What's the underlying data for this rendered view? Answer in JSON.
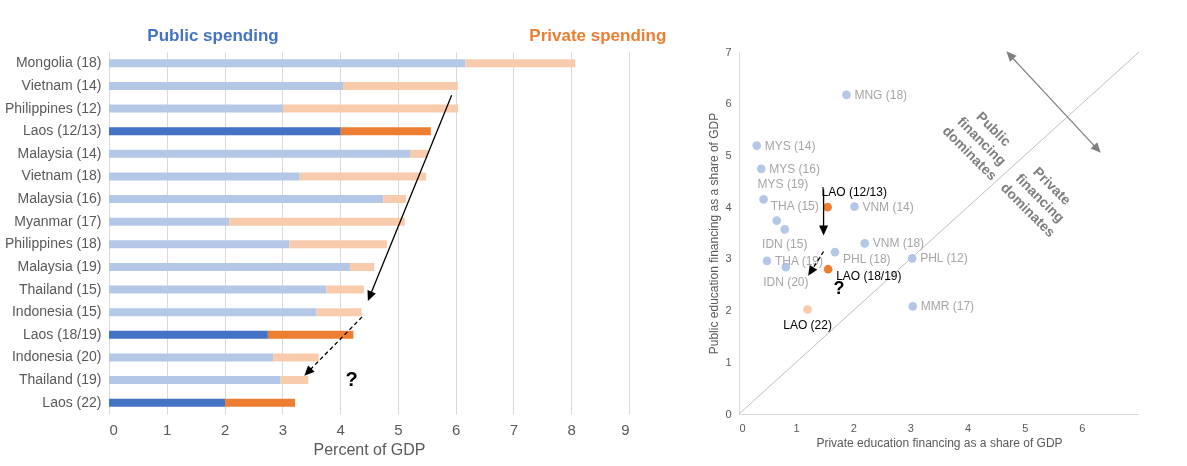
{
  "chart_data": [
    {
      "type": "bar",
      "orientation": "horizontal",
      "stacked": true,
      "legend": "top",
      "grid": "x",
      "xlabel": "Percent of GDP",
      "xlim": [
        0,
        9
      ],
      "xticks": [
        0,
        1,
        2,
        3,
        4,
        5,
        6,
        7,
        8,
        9
      ],
      "categories": [
        "Mongolia (18)",
        "Vietnam (14)",
        "Philippines (12)",
        "Laos (12/13)",
        "Malaysia (14)",
        "Vietnam (18)",
        "Malaysia (16)",
        "Myanmar (17)",
        "Philippines (18)",
        "Malaysia (19)",
        "Thailand (15)",
        "Indonesia (15)",
        "Laos (18/19)",
        "Indonesia (20)",
        "Thailand (19)",
        "Laos (22)"
      ],
      "series": [
        {
          "name": "Public spending",
          "color": "#4472c4",
          "colors": [
            "#b4c7e7",
            "#b4c7e7",
            "#b4c7e7",
            "#4472c4",
            "#b4c7e7",
            "#b4c7e7",
            "#b4c7e7",
            "#b4c7e7",
            "#b4c7e7",
            "#b4c7e7",
            "#b4c7e7",
            "#b4c7e7",
            "#4472c4",
            "#b4c7e7",
            "#b4c7e7",
            "#4472c4"
          ],
          "values": [
            6.17,
            4.05,
            3.01,
            4.01,
            5.21,
            3.3,
            4.75,
            2.08,
            3.12,
            4.17,
            3.76,
            3.59,
            2.75,
            2.84,
            2.97,
            2.01
          ]
        },
        {
          "name": "Private spending",
          "color": "#ed7d31",
          "colors": [
            "#f8cbad",
            "#f8cbad",
            "#f8cbad",
            "#ed7d31",
            "#f8cbad",
            "#f8cbad",
            "#f8cbad",
            "#f8cbad",
            "#f8cbad",
            "#f8cbad",
            "#f8cbad",
            "#f8cbad",
            "#ed7d31",
            "#f8cbad",
            "#f8cbad",
            "#ed7d31"
          ],
          "values": [
            1.9,
            1.99,
            3.03,
            1.56,
            0.31,
            2.19,
            0.39,
            3.04,
            1.69,
            0.42,
            0.65,
            0.78,
            1.48,
            0.79,
            0.48,
            1.21
          ]
        }
      ],
      "annotations": [
        "?"
      ]
    },
    {
      "type": "scatter",
      "marker": "circle",
      "xlabel": "Private education financing as a share of GDP",
      "ylabel": "Public education financing as a share of GDP",
      "xlim": [
        0,
        7
      ],
      "ylim": [
        0,
        7
      ],
      "xticks": [
        0,
        1,
        2,
        3,
        4,
        5,
        6
      ],
      "yticks": [
        0,
        1,
        2,
        3,
        4,
        5,
        6,
        7
      ],
      "series": [
        {
          "type": "scatter",
          "x": [
            1.88,
            0.31,
            0.39,
            0.43,
            1.55,
            2.02,
            0.66,
            0.8,
            2.2,
            1.68,
            3.03,
            0.49,
            0.82,
            1.56,
            1.2,
            3.04
          ],
          "values": [
            6.17,
            5.19,
            4.74,
            4.15,
            4.0,
            4.01,
            3.74,
            3.57,
            3.3,
            3.13,
            3.01,
            2.96,
            2.84,
            2.8,
            2.02,
            2.08
          ],
          "colors": [
            "#b4c7e7",
            "#b4c7e7",
            "#b4c7e7",
            "#b4c7e7",
            "#ed7d31",
            "#b4c7e7",
            "#b4c7e7",
            "#b4c7e7",
            "#b4c7e7",
            "#b4c7e7",
            "#b4c7e7",
            "#b4c7e7",
            "#b4c7e7",
            "#ed7d31",
            "#f8cbad",
            "#b4c7e7"
          ]
        },
        {
          "type": "line",
          "marker": "none",
          "x": [
            0,
            7
          ],
          "values": [
            0,
            7
          ],
          "color": "#bfbfbf"
        }
      ],
      "annotations": [
        {
          "text": "MNG (18)",
          "x": 1.88,
          "y": 6.17
        },
        {
          "text": "MYS (14)",
          "x": 0.31,
          "y": 5.19
        },
        {
          "text": "MYS (16)",
          "x": 0.39,
          "y": 4.74
        },
        {
          "text": "MYS (19)",
          "x": 0.43,
          "y": 4.15
        },
        {
          "text": "LAO (12/13)",
          "x": 1.55,
          "y": 4.0
        },
        {
          "text": "VNM (14)",
          "x": 2.02,
          "y": 4.01
        },
        {
          "text": "THA (15)",
          "x": 0.66,
          "y": 3.74
        },
        {
          "text": "IDN (15)",
          "x": 0.8,
          "y": 3.57
        },
        {
          "text": "VNM (18)",
          "x": 2.2,
          "y": 3.3
        },
        {
          "text": "PHL (18)",
          "x": 1.68,
          "y": 3.13
        },
        {
          "text": "PHL (12)",
          "x": 3.03,
          "y": 3.01
        },
        {
          "text": "THA (19)",
          "x": 0.49,
          "y": 2.96
        },
        {
          "text": "IDN (20)",
          "x": 0.82,
          "y": 2.84
        },
        {
          "text": "LAO (18/19)",
          "x": 1.56,
          "y": 2.8
        },
        {
          "text": "LAO (22)",
          "x": 1.2,
          "y": 2.02
        },
        {
          "text": "MMR (17)",
          "x": 3.04,
          "y": 2.08
        },
        "?",
        "Public financing dominates",
        "Private financing dominates"
      ]
    }
  ]
}
